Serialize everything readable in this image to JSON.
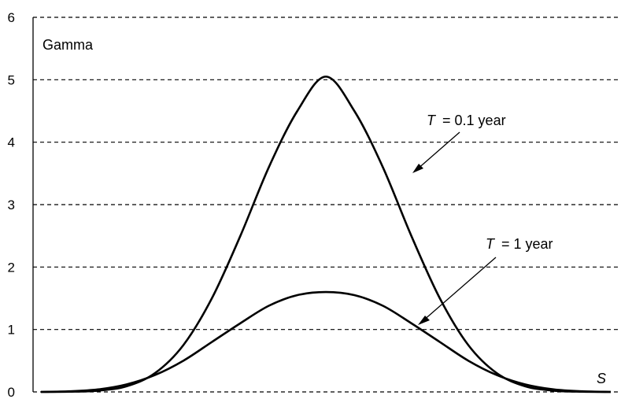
{
  "chart_data": {
    "type": "line",
    "ylabel": "Gamma",
    "xlabel": "S",
    "ylim": [
      0,
      6
    ],
    "yticks": [
      "0",
      "1",
      "2",
      "3",
      "4",
      "5",
      "6"
    ],
    "grid": true,
    "x": [
      0,
      5,
      10,
      15,
      20,
      25,
      30,
      35,
      40,
      45,
      50,
      55,
      60,
      65,
      70,
      75,
      80,
      85,
      90,
      95,
      100
    ],
    "series": [
      {
        "name": "T = 0.1 year",
        "values": [
          0.0,
          0.003,
          0.02,
          0.09,
          0.3,
          0.75,
          1.5,
          2.5,
          3.6,
          4.5,
          5.05,
          4.5,
          3.6,
          2.5,
          1.5,
          0.75,
          0.3,
          0.09,
          0.02,
          0.003,
          0.0
        ]
      },
      {
        "name": "T = 1 year",
        "values": [
          0.0,
          0.01,
          0.04,
          0.12,
          0.27,
          0.5,
          0.8,
          1.1,
          1.38,
          1.55,
          1.6,
          1.55,
          1.38,
          1.1,
          0.8,
          0.5,
          0.27,
          0.12,
          0.04,
          0.01,
          0.0
        ]
      }
    ],
    "annotations": [
      {
        "symbol": "T",
        "text": "= 0.1 year"
      },
      {
        "symbol": "T",
        "text": "= 1 year"
      }
    ]
  }
}
